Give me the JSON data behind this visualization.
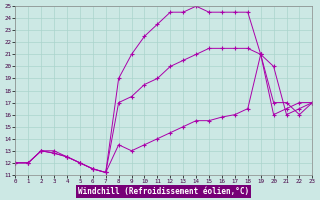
{
  "background_color": "#cce8e4",
  "grid_color": "#aad4cc",
  "line_color": "#aa00aa",
  "xlim": [
    0,
    23
  ],
  "ylim": [
    11,
    25
  ],
  "xtick_labels": [
    "0",
    "1",
    "2",
    "3",
    "4",
    "5",
    "6",
    "7",
    "8",
    "9",
    "10",
    "11",
    "12",
    "13",
    "14",
    "15",
    "16",
    "17",
    "18",
    "19",
    "20",
    "21",
    "22",
    "23"
  ],
  "ytick_labels": [
    "11",
    "12",
    "13",
    "14",
    "15",
    "16",
    "17",
    "18",
    "19",
    "20",
    "21",
    "22",
    "23",
    "24",
    "25"
  ],
  "xlabel": "Windchill (Refroidissement éolien,°C)",
  "series": [
    {
      "x": [
        0,
        1,
        2,
        3,
        4,
        5,
        6,
        7,
        8,
        9,
        10,
        11,
        12,
        13,
        14,
        15,
        16,
        17,
        18,
        19,
        20,
        21,
        22,
        23
      ],
      "y": [
        12,
        12,
        13,
        13,
        12.5,
        12,
        11.5,
        11.2,
        19,
        21,
        22.5,
        23.5,
        24.5,
        24.5,
        25,
        24.5,
        24.5,
        24.5,
        24.5,
        21,
        17,
        17,
        16,
        17
      ]
    },
    {
      "x": [
        0,
        1,
        2,
        3,
        4,
        5,
        6,
        7,
        8,
        9,
        10,
        11,
        12,
        13,
        14,
        15,
        16,
        17,
        18,
        19,
        20,
        21,
        22,
        23
      ],
      "y": [
        12,
        12,
        13,
        12.8,
        12.5,
        12,
        11.5,
        11.2,
        17,
        17.5,
        18.5,
        19,
        20,
        20.5,
        21,
        21.5,
        21.5,
        21.5,
        21.5,
        21,
        16,
        16.5,
        17,
        17
      ]
    },
    {
      "x": [
        0,
        1,
        2,
        3,
        4,
        5,
        6,
        7,
        8,
        9,
        10,
        11,
        12,
        13,
        14,
        15,
        16,
        17,
        18,
        19,
        20,
        21,
        22,
        23
      ],
      "y": [
        12,
        12,
        13,
        12.8,
        12.5,
        12,
        11.5,
        11.2,
        13.5,
        13,
        13.5,
        14,
        14.5,
        15,
        15.5,
        15.5,
        15.8,
        16,
        16.5,
        21,
        20,
        16,
        16.5,
        17
      ]
    }
  ]
}
